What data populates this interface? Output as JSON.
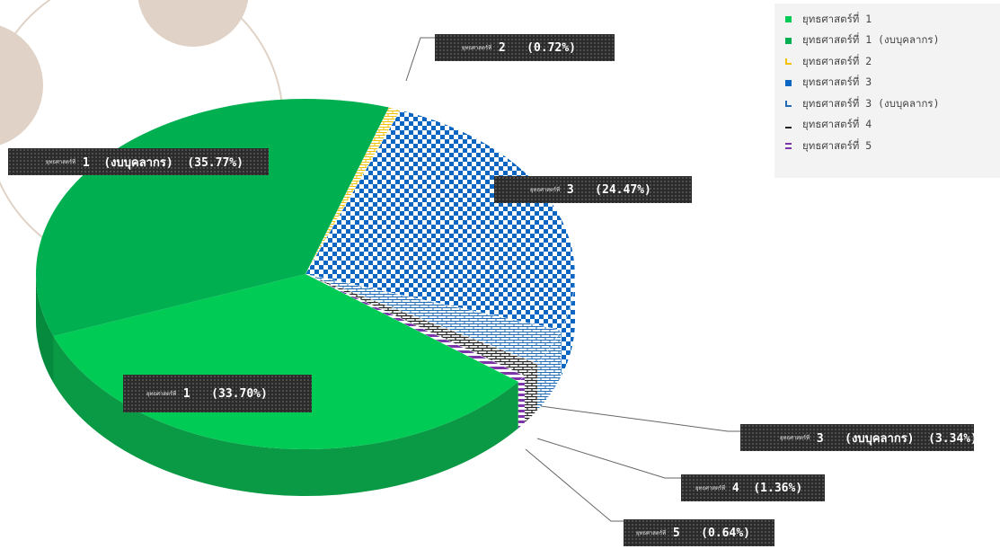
{
  "chart_data": {
    "type": "pie",
    "title": "",
    "legend_position": "top-right",
    "slices": [
      {
        "label": "ยุทธศาสตร์ที่ 1",
        "value": 33.7,
        "value_label": "(33.70%)",
        "color": "#00cc55",
        "pattern": "solid"
      },
      {
        "label": "ยุทธศาสตร์ที่ 1 (งบบุคลากร)",
        "value": 35.77,
        "value_label": "(35.77%)",
        "color": "#00b050",
        "pattern": "solid"
      },
      {
        "label": "ยุทธศาสตร์ที่ 2",
        "value": 0.72,
        "value_label": "(0.72%)",
        "color": "#f2c200",
        "pattern": "bricks"
      },
      {
        "label": "ยุทธศาสตร์ที่ 3",
        "value": 24.47,
        "value_label": "(24.47%)",
        "color": "#0a66c2",
        "pattern": "checker"
      },
      {
        "label": "ยุทธศาสตร์ที่ 3 (งบบุคลากร)",
        "value": 3.34,
        "value_label": "(3.34%)",
        "color": "#1f6bb5",
        "pattern": "bricks"
      },
      {
        "label": "ยุทธศาสตร์ที่ 4",
        "value": 1.36,
        "value_label": "(1.36%)",
        "color": "#222222",
        "pattern": "bricks"
      },
      {
        "label": "ยุทธศาสตร์ที่ 5",
        "value": 0.64,
        "value_label": "(0.64%)",
        "color": "#7b35a8",
        "pattern": "stripes"
      }
    ]
  },
  "callouts": [
    {
      "small": "ยุทธศาสตร์ที่",
      "main": "2   (0.72%)"
    },
    {
      "small": "ยุทธศาสตร์ที่",
      "main": "1  (งบบุคลากร)  (35.77%)"
    },
    {
      "small": "ยุทธศาสตร์ที่",
      "main": "3   (24.47%)"
    },
    {
      "small": "ยุทธศาสตร์ที่",
      "main": "1   (33.70%)"
    },
    {
      "small": "ยุทธศาสตร์ที่",
      "main": "3   (งบบุคลากร)  (3.34%)"
    },
    {
      "small": "ยุทธศาสตร์ที่",
      "main": "4  (1.36%)"
    },
    {
      "small": "ยุทธศาสตร์ที่",
      "main": "5   (0.64%)"
    }
  ],
  "legend": [
    {
      "label": "ยุทธศาสตร์ที่ 1",
      "color": "#00cc55"
    },
    {
      "label": "ยุทธศาสตร์ที่ 1 (งบบุคลากร)",
      "color": "#00b050"
    },
    {
      "label": "ยุทธศาสตร์ที่ 2",
      "color": "#f2c200"
    },
    {
      "label": "ยุทธศาสตร์ที่ 3",
      "color": "#0a66c2"
    },
    {
      "label": "ยุทธศาสตร์ที่ 3 (งบบุคลากร)",
      "color": "#1f6bb5"
    },
    {
      "label": "ยุทธศาสตร์ที่ 4",
      "color": "#222222"
    },
    {
      "label": "ยุทธศาสตร์ที่ 5",
      "color": "#7b35a8"
    }
  ]
}
